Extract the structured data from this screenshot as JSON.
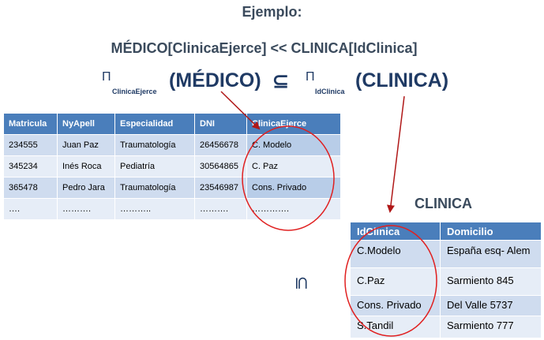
{
  "title": "Ejemplo:",
  "rule": "MÉDICO[ClinicaEjerce] << CLINICA[IdClinica]",
  "projection": {
    "pi_symbol": "Π",
    "left_sub": "ClinicaEjerce",
    "left_rel": "(MÉDICO)",
    "op": "⊆",
    "right_sub": "IdClinica",
    "right_rel": "(CLINICA)"
  },
  "medico": {
    "headers": [
      "Matricula",
      "NyApell",
      "Especialidad",
      "DNI",
      "ClinicaEjerce"
    ],
    "rows": [
      [
        "234555",
        "Juan Paz",
        "Traumatología",
        "26456678",
        "C. Modelo"
      ],
      [
        "345234",
        "Inés Roca",
        "Pediatría",
        "30564865",
        "C. Paz"
      ],
      [
        "365478",
        "Pedro Jara",
        "Traumatología",
        "23546987",
        "Cons. Privado"
      ],
      [
        "….",
        "……….",
        "………..",
        "……….",
        "…………."
      ]
    ]
  },
  "clinica": {
    "title": "CLINICA",
    "headers": [
      "IdClinica",
      "Domicilio"
    ],
    "rows": [
      [
        "C.Modelo",
        "España esq- Alem"
      ],
      [
        "C.Paz",
        "Sarmiento 845"
      ],
      [
        "Cons. Privado",
        "Del Valle 5737"
      ],
      [
        "S.Tandil",
        "Sarmiento 777"
      ]
    ]
  },
  "subset_symbol": "⊆",
  "colors": {
    "header_bg": "#4a7ebb",
    "row_dark": "#cfdcef",
    "row_light": "#e6edf7",
    "title_text": "#3a4a5c",
    "formula_text": "#1f3a64",
    "highlight": "#e02020",
    "arrow": "#b01818"
  }
}
